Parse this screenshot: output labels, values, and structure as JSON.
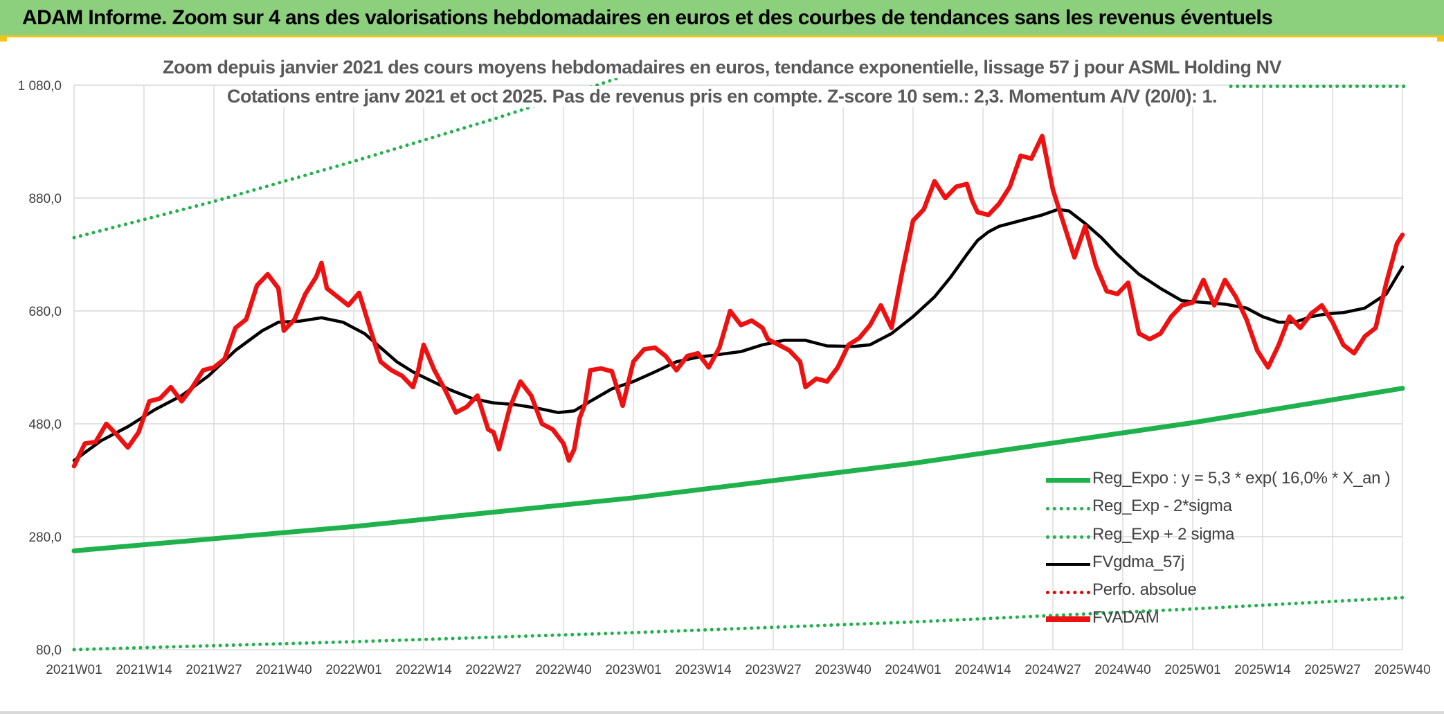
{
  "header": {
    "title": "ADAM Informe. Zoom sur 4 ans des valorisations hebdomadaires en euros et des courbes de tendances sans les revenus éventuels"
  },
  "chart_data": {
    "type": "line",
    "title": "Zoom depuis janvier 2021 des cours moyens hebdomadaires en euros, tendance exponentielle, lissage 57 j pour ASML Holding NV",
    "subtitle": "Cotations entre janv 2021 et oct 2025. Pas de revenus pris en compte. Z-score 10 sem.: 2,3. Momentum A/V (20/0): 1.",
    "xlabel": "",
    "ylabel": "",
    "ylim": [
      80,
      1080
    ],
    "y_ticks": [
      "80,0",
      "280,0",
      "480,0",
      "680,0",
      "880,0",
      "1 080,0"
    ],
    "x_ticks": [
      "2021W01",
      "2021W14",
      "2021W27",
      "2021W40",
      "2022W01",
      "2022W14",
      "2022W27",
      "2022W40",
      "2023W01",
      "2023W14",
      "2023W27",
      "2023W40",
      "2024W01",
      "2024W14",
      "2024W27",
      "2024W40",
      "2025W01",
      "2025W14",
      "2025W27",
      "2025W40"
    ],
    "x_tick_weeks": [
      0,
      13,
      26,
      39,
      52,
      65,
      78,
      91,
      104,
      117,
      130,
      143,
      156,
      169,
      182,
      195,
      208,
      221,
      234,
      247
    ],
    "grid": true,
    "legend_position": "bottom-right",
    "series": [
      {
        "name": "Reg_Expo : y = 5,3 * exp( 16,0% *  X_an )",
        "color": "#1fb14c",
        "style": "solid",
        "points": [
          [
            0,
            255
          ],
          [
            52,
            298
          ],
          [
            104,
            349
          ],
          [
            156,
            410
          ],
          [
            208,
            482
          ],
          [
            247,
            543
          ]
        ]
      },
      {
        "name": "Reg_Exp - 2*sigma",
        "color": "#1fb14c",
        "style": "dotted",
        "points": [
          [
            0,
            80
          ],
          [
            52,
            94
          ],
          [
            104,
            110
          ],
          [
            156,
            129
          ],
          [
            208,
            152
          ],
          [
            247,
            172
          ]
        ]
      },
      {
        "name": "Reg_Exp + 2 sigma",
        "color": "#1fb14c",
        "style": "dotted",
        "points": [
          [
            0,
            810
          ],
          [
            26,
            874
          ],
          [
            52,
            945
          ],
          [
            78,
            1020
          ],
          [
            91,
            1060
          ],
          [
            104,
            1102
          ]
        ]
      },
      {
        "name": "FVgdma_57j",
        "color": "#000000",
        "style": "solid",
        "points": [
          [
            0,
            415
          ],
          [
            5,
            450
          ],
          [
            10,
            475
          ],
          [
            15,
            505
          ],
          [
            20,
            530
          ],
          [
            25,
            565
          ],
          [
            30,
            610
          ],
          [
            35,
            645
          ],
          [
            38,
            660
          ],
          [
            42,
            662
          ],
          [
            46,
            668
          ],
          [
            50,
            660
          ],
          [
            54,
            640
          ],
          [
            57,
            615
          ],
          [
            60,
            590
          ],
          [
            63,
            572
          ],
          [
            66,
            558
          ],
          [
            70,
            540
          ],
          [
            74,
            525
          ],
          [
            78,
            517
          ],
          [
            82,
            514
          ],
          [
            86,
            508
          ],
          [
            90,
            500
          ],
          [
            93,
            503
          ],
          [
            96,
            520
          ],
          [
            100,
            542
          ],
          [
            104,
            555
          ],
          [
            108,
            572
          ],
          [
            112,
            590
          ],
          [
            116,
            598
          ],
          [
            120,
            603
          ],
          [
            124,
            608
          ],
          [
            128,
            620
          ],
          [
            132,
            628
          ],
          [
            136,
            628
          ],
          [
            140,
            618
          ],
          [
            145,
            617
          ],
          [
            148,
            620
          ],
          [
            152,
            640
          ],
          [
            156,
            670
          ],
          [
            160,
            705
          ],
          [
            163,
            740
          ],
          [
            166,
            780
          ],
          [
            168,
            805
          ],
          [
            170,
            820
          ],
          [
            172,
            830
          ],
          [
            176,
            840
          ],
          [
            180,
            850
          ],
          [
            183,
            860
          ],
          [
            185,
            857
          ],
          [
            188,
            835
          ],
          [
            191,
            810
          ],
          [
            194,
            780
          ],
          [
            198,
            745
          ],
          [
            202,
            720
          ],
          [
            206,
            698
          ],
          [
            210,
            695
          ],
          [
            214,
            692
          ],
          [
            218,
            685
          ],
          [
            221,
            670
          ],
          [
            224,
            660
          ],
          [
            227,
            660
          ],
          [
            230,
            670
          ],
          [
            233,
            675
          ],
          [
            236,
            677
          ],
          [
            240,
            685
          ],
          [
            244,
            710
          ],
          [
            247,
            758
          ]
        ]
      },
      {
        "name": "Perfo. absolue",
        "color": "#e60000",
        "style": "dotted",
        "points": []
      },
      {
        "name": "FVADAM",
        "color": "#ee1111",
        "style": "solid-thick",
        "points": [
          [
            0,
            405
          ],
          [
            2,
            445
          ],
          [
            4,
            448
          ],
          [
            6,
            480
          ],
          [
            8,
            460
          ],
          [
            10,
            438
          ],
          [
            12,
            465
          ],
          [
            14,
            520
          ],
          [
            16,
            525
          ],
          [
            18,
            545
          ],
          [
            20,
            520
          ],
          [
            22,
            545
          ],
          [
            24,
            575
          ],
          [
            26,
            580
          ],
          [
            28,
            595
          ],
          [
            30,
            650
          ],
          [
            32,
            665
          ],
          [
            34,
            725
          ],
          [
            36,
            745
          ],
          [
            38,
            720
          ],
          [
            39,
            645
          ],
          [
            41,
            665
          ],
          [
            43,
            710
          ],
          [
            45,
            740
          ],
          [
            46,
            765
          ],
          [
            47,
            720
          ],
          [
            49,
            705
          ],
          [
            51,
            690
          ],
          [
            53,
            712
          ],
          [
            55,
            650
          ],
          [
            57,
            590
          ],
          [
            59,
            575
          ],
          [
            61,
            565
          ],
          [
            63,
            545
          ],
          [
            64,
            575
          ],
          [
            65,
            620
          ],
          [
            67,
            575
          ],
          [
            69,
            540
          ],
          [
            71,
            500
          ],
          [
            73,
            510
          ],
          [
            75,
            530
          ],
          [
            77,
            470
          ],
          [
            78,
            465
          ],
          [
            79,
            435
          ],
          [
            81,
            508
          ],
          [
            83,
            555
          ],
          [
            85,
            530
          ],
          [
            87,
            480
          ],
          [
            89,
            470
          ],
          [
            91,
            445
          ],
          [
            92,
            415
          ],
          [
            93,
            435
          ],
          [
            94,
            490
          ],
          [
            95,
            515
          ],
          [
            96,
            575
          ],
          [
            98,
            578
          ],
          [
            100,
            573
          ],
          [
            102,
            512
          ],
          [
            104,
            590
          ],
          [
            106,
            612
          ],
          [
            108,
            615
          ],
          [
            110,
            600
          ],
          [
            112,
            575
          ],
          [
            114,
            600
          ],
          [
            116,
            605
          ],
          [
            118,
            580
          ],
          [
            120,
            615
          ],
          [
            122,
            680
          ],
          [
            124,
            655
          ],
          [
            126,
            663
          ],
          [
            128,
            650
          ],
          [
            129,
            630
          ],
          [
            131,
            620
          ],
          [
            133,
            610
          ],
          [
            135,
            590
          ],
          [
            136,
            545
          ],
          [
            138,
            560
          ],
          [
            140,
            555
          ],
          [
            142,
            580
          ],
          [
            144,
            620
          ],
          [
            146,
            632
          ],
          [
            148,
            655
          ],
          [
            150,
            690
          ],
          [
            152,
            650
          ],
          [
            154,
            750
          ],
          [
            156,
            840
          ],
          [
            158,
            860
          ],
          [
            160,
            910
          ],
          [
            162,
            880
          ],
          [
            164,
            900
          ],
          [
            166,
            905
          ],
          [
            167,
            875
          ],
          [
            168,
            855
          ],
          [
            170,
            850
          ],
          [
            172,
            870
          ],
          [
            174,
            900
          ],
          [
            176,
            955
          ],
          [
            178,
            950
          ],
          [
            180,
            990
          ],
          [
            182,
            895
          ],
          [
            184,
            835
          ],
          [
            186,
            775
          ],
          [
            188,
            830
          ],
          [
            190,
            760
          ],
          [
            192,
            715
          ],
          [
            194,
            710
          ],
          [
            196,
            730
          ],
          [
            198,
            640
          ],
          [
            200,
            630
          ],
          [
            202,
            640
          ],
          [
            204,
            670
          ],
          [
            206,
            690
          ],
          [
            208,
            695
          ],
          [
            210,
            735
          ],
          [
            212,
            690
          ],
          [
            214,
            735
          ],
          [
            216,
            705
          ],
          [
            218,
            665
          ],
          [
            220,
            610
          ],
          [
            222,
            580
          ],
          [
            224,
            620
          ],
          [
            226,
            670
          ],
          [
            228,
            650
          ],
          [
            230,
            675
          ],
          [
            232,
            690
          ],
          [
            234,
            660
          ],
          [
            236,
            620
          ],
          [
            238,
            605
          ],
          [
            240,
            635
          ],
          [
            242,
            650
          ],
          [
            244,
            730
          ],
          [
            246,
            800
          ],
          [
            247,
            815
          ]
        ]
      }
    ]
  }
}
